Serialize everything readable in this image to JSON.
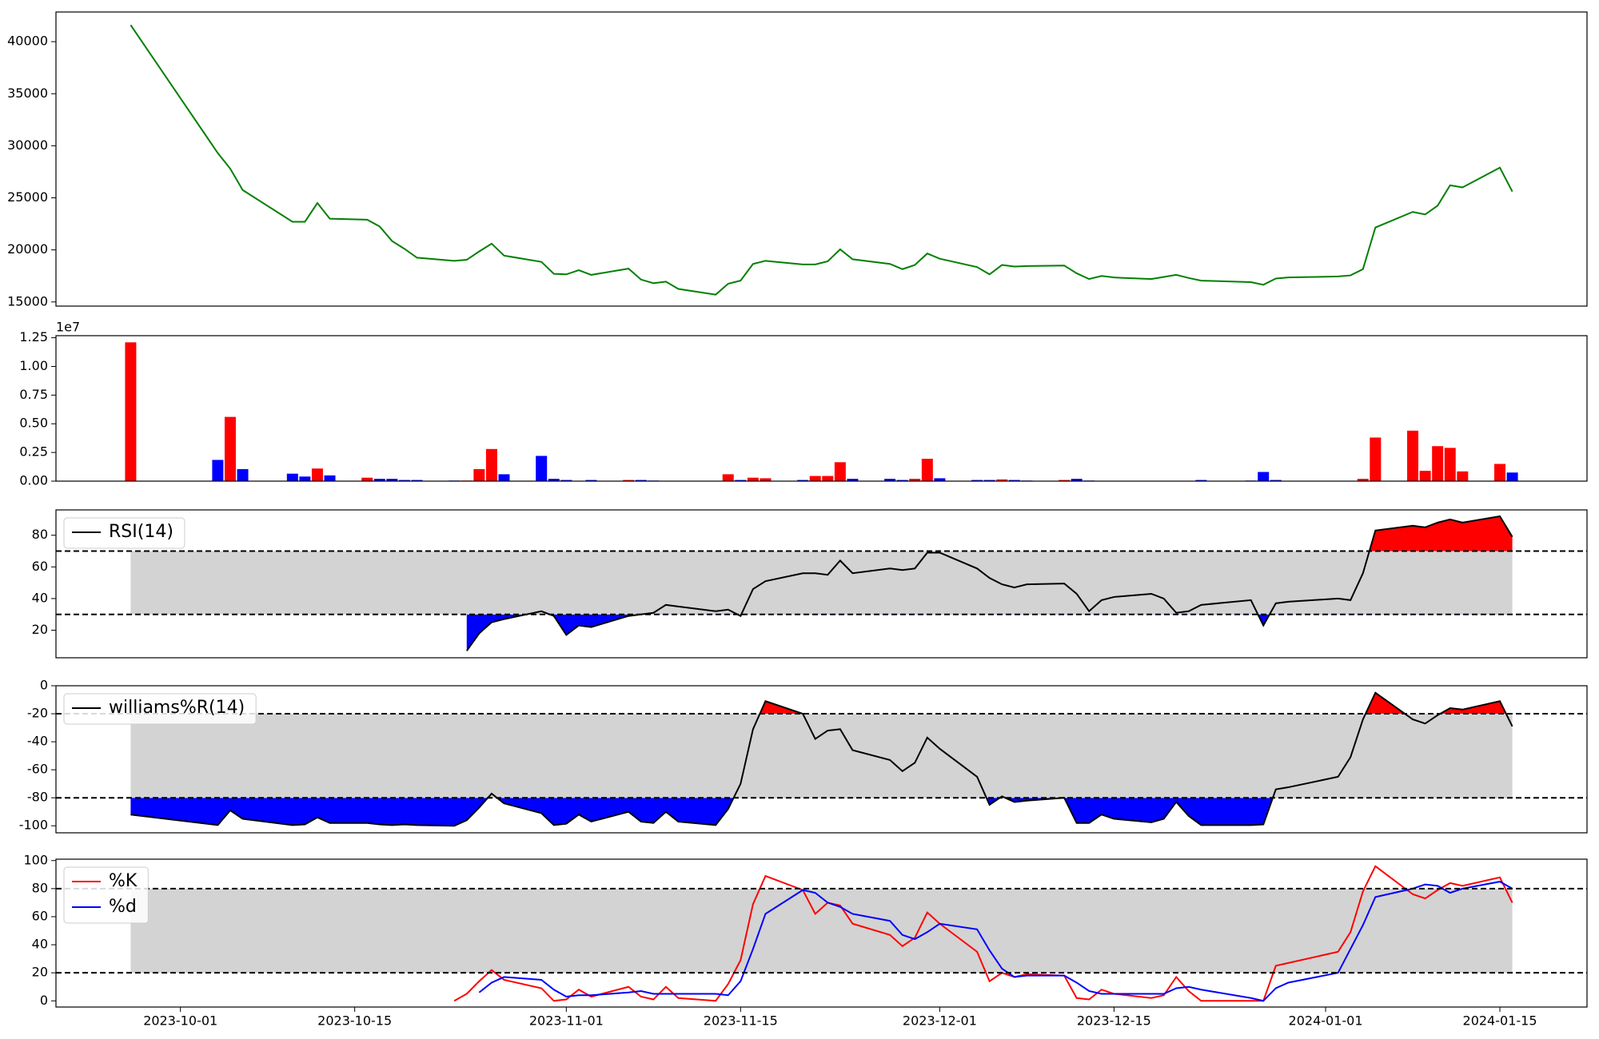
{
  "chart_data": [
    {
      "type": "line",
      "color": "#008000",
      "x": [
        "2023-09-27",
        "2023-10-04",
        "2023-10-05",
        "2023-10-06",
        "2023-10-10",
        "2023-10-11",
        "2023-10-12",
        "2023-10-13",
        "2023-10-16",
        "2023-10-17",
        "2023-10-18",
        "2023-10-19",
        "2023-10-20",
        "2023-10-23",
        "2023-10-24",
        "2023-10-25",
        "2023-10-26",
        "2023-10-27",
        "2023-10-30",
        "2023-10-31",
        "2023-11-01",
        "2023-11-02",
        "2023-11-03",
        "2023-11-06",
        "2023-11-07",
        "2023-11-08",
        "2023-11-09",
        "2023-11-10",
        "2023-11-13",
        "2023-11-14",
        "2023-11-15",
        "2023-11-16",
        "2023-11-17",
        "2023-11-20",
        "2023-11-21",
        "2023-11-22",
        "2023-11-23",
        "2023-11-24",
        "2023-11-27",
        "2023-11-28",
        "2023-11-29",
        "2023-11-30",
        "2023-12-01",
        "2023-12-04",
        "2023-12-05",
        "2023-12-06",
        "2023-12-07",
        "2023-12-08",
        "2023-12-11",
        "2023-12-12",
        "2023-12-13",
        "2023-12-14",
        "2023-12-15",
        "2023-12-18",
        "2023-12-19",
        "2023-12-20",
        "2023-12-21",
        "2023-12-22",
        "2023-12-26",
        "2023-12-27",
        "2023-12-28",
        "2023-12-29",
        "2024-01-02",
        "2024-01-03",
        "2024-01-04",
        "2024-01-05",
        "2024-01-08",
        "2024-01-09",
        "2024-01-10",
        "2024-01-11",
        "2024-01-12",
        "2024-01-15",
        "2024-01-16"
      ],
      "values": [
        41600,
        29300,
        27800,
        25750,
        22700,
        22700,
        24500,
        23000,
        22900,
        22250,
        20850,
        20100,
        19250,
        18950,
        19050,
        19850,
        20600,
        19450,
        18850,
        17700,
        17650,
        18050,
        17600,
        18200,
        17150,
        16800,
        16950,
        16250,
        15700,
        16750,
        17050,
        18650,
        18950,
        18600,
        18600,
        18900,
        20050,
        19100,
        18650,
        18150,
        18550,
        19650,
        19150,
        18350,
        17650,
        18550,
        18400,
        18450,
        18500,
        17750,
        17200,
        17500,
        17350,
        17200,
        17400,
        17600,
        17300,
        17050,
        16900,
        16650,
        17250,
        17350,
        17450,
        17550,
        18150,
        22150,
        23650,
        23400,
        24250,
        26200,
        26000,
        27900,
        25600
      ],
      "xlim": [
        "2023-09-21",
        "2024-01-22"
      ],
      "ylim": [
        14600,
        42850
      ],
      "yticks": [
        15000,
        20000,
        25000,
        30000,
        35000,
        40000
      ]
    },
    {
      "type": "bar",
      "offset_label": "1e7",
      "x": [
        "2023-09-27",
        "2023-10-04",
        "2023-10-05",
        "2023-10-06",
        "2023-10-10",
        "2023-10-11",
        "2023-10-12",
        "2023-10-13",
        "2023-10-16",
        "2023-10-17",
        "2023-10-18",
        "2023-10-19",
        "2023-10-20",
        "2023-10-23",
        "2023-10-24",
        "2023-10-25",
        "2023-10-26",
        "2023-10-27",
        "2023-10-30",
        "2023-10-31",
        "2023-11-01",
        "2023-11-02",
        "2023-11-03",
        "2023-11-06",
        "2023-11-07",
        "2023-11-08",
        "2023-11-09",
        "2023-11-10",
        "2023-11-13",
        "2023-11-14",
        "2023-11-15",
        "2023-11-16",
        "2023-11-17",
        "2023-11-20",
        "2023-11-21",
        "2023-11-22",
        "2023-11-23",
        "2023-11-24",
        "2023-11-27",
        "2023-11-28",
        "2023-11-29",
        "2023-11-30",
        "2023-12-01",
        "2023-12-04",
        "2023-12-05",
        "2023-12-06",
        "2023-12-07",
        "2023-12-08",
        "2023-12-11",
        "2023-12-12",
        "2023-12-13",
        "2023-12-14",
        "2023-12-15",
        "2023-12-18",
        "2023-12-19",
        "2023-12-20",
        "2023-12-21",
        "2023-12-22",
        "2023-12-26",
        "2023-12-27",
        "2023-12-28",
        "2023-12-29",
        "2024-01-02",
        "2024-01-03",
        "2024-01-04",
        "2024-01-05",
        "2024-01-08",
        "2024-01-09",
        "2024-01-10",
        "2024-01-11",
        "2024-01-12",
        "2024-01-15",
        "2024-01-16"
      ],
      "values": [
        12100000,
        1850000,
        5600000,
        1050000,
        650000,
        400000,
        1100000,
        500000,
        300000,
        200000,
        200000,
        100000,
        100000,
        50000,
        50000,
        1050000,
        2800000,
        600000,
        2200000,
        200000,
        100000,
        30000,
        100000,
        100000,
        100000,
        50000,
        30000,
        30000,
        30000,
        600000,
        100000,
        300000,
        250000,
        100000,
        450000,
        450000,
        1650000,
        200000,
        200000,
        100000,
        200000,
        1950000,
        250000,
        100000,
        100000,
        150000,
        100000,
        50000,
        100000,
        200000,
        50000,
        30000,
        30000,
        30000,
        30000,
        30000,
        30000,
        100000,
        50000,
        800000,
        100000,
        30000,
        30000,
        30000,
        200000,
        3800000,
        4400000,
        900000,
        3050000,
        2900000,
        850000,
        1500000,
        750000
      ],
      "colors": [
        "#ff0000",
        "#0000ff",
        "#ff0000",
        "#0000ff",
        "#0000ff",
        "#0000ff",
        "#ff0000",
        "#0000ff",
        "#ff0000",
        "#0000ff",
        "#0000ff",
        "#0000ff",
        "#0000ff",
        "#0000ff",
        "#ff0000",
        "#ff0000",
        "#ff0000",
        "#0000ff",
        "#0000ff",
        "#0000ff",
        "#0000ff",
        "#ff0000",
        "#0000ff",
        "#ff0000",
        "#0000ff",
        "#0000ff",
        "#ff0000",
        "#0000ff",
        "#0000ff",
        "#ff0000",
        "#0000ff",
        "#ff0000",
        "#ff0000",
        "#0000ff",
        "#ff0000",
        "#ff0000",
        "#ff0000",
        "#0000ff",
        "#0000ff",
        "#0000ff",
        "#ff0000",
        "#ff0000",
        "#0000ff",
        "#0000ff",
        "#0000ff",
        "#ff0000",
        "#0000ff",
        "#0000ff",
        "#ff0000",
        "#0000ff",
        "#0000ff",
        "#ff0000",
        "#0000ff",
        "#0000ff",
        "#ff0000",
        "#ff0000",
        "#ff0000",
        "#0000ff",
        "#0000ff",
        "#0000ff",
        "#0000ff",
        "#ff0000",
        "#ff0000",
        "#ff0000",
        "#ff0000",
        "#ff0000",
        "#ff0000",
        "#ff0000",
        "#ff0000",
        "#ff0000",
        "#ff0000",
        "#ff0000",
        "#0000ff"
      ],
      "xlim": [
        "2023-09-21",
        "2024-01-22"
      ],
      "ylim": [
        0,
        12680000
      ],
      "yticks": [
        {
          "value": 0,
          "label": "0.00"
        },
        {
          "value": 2500000,
          "label": "0.25"
        },
        {
          "value": 5000000,
          "label": "0.50"
        },
        {
          "value": 7500000,
          "label": "0.75"
        },
        {
          "value": 10000000,
          "label": "1.00"
        },
        {
          "value": 12500000,
          "label": "1.25"
        }
      ]
    },
    {
      "type": "line",
      "levels": [
        30,
        70
      ],
      "band_color": "#d3d3d3",
      "fill_above": "#ff0000",
      "fill_below": "#0000ff",
      "legend": "upper left",
      "x": [
        "2023-09-27",
        "2023-10-04",
        "2023-10-05",
        "2023-10-06",
        "2023-10-10",
        "2023-10-11",
        "2023-10-12",
        "2023-10-13",
        "2023-10-16",
        "2023-10-17",
        "2023-10-18",
        "2023-10-19",
        "2023-10-20",
        "2023-10-23",
        "2023-10-24",
        "2023-10-25",
        "2023-10-26",
        "2023-10-27",
        "2023-10-30",
        "2023-10-31",
        "2023-11-01",
        "2023-11-02",
        "2023-11-03",
        "2023-11-06",
        "2023-11-07",
        "2023-11-08",
        "2023-11-09",
        "2023-11-10",
        "2023-11-13",
        "2023-11-14",
        "2023-11-15",
        "2023-11-16",
        "2023-11-17",
        "2023-11-20",
        "2023-11-21",
        "2023-11-22",
        "2023-11-23",
        "2023-11-24",
        "2023-11-27",
        "2023-11-28",
        "2023-11-29",
        "2023-11-30",
        "2023-12-01",
        "2023-12-04",
        "2023-12-05",
        "2023-12-06",
        "2023-12-07",
        "2023-12-08",
        "2023-12-11",
        "2023-12-12",
        "2023-12-13",
        "2023-12-14",
        "2023-12-15",
        "2023-12-18",
        "2023-12-19",
        "2023-12-20",
        "2023-12-21",
        "2023-12-22",
        "2023-12-26",
        "2023-12-27",
        "2023-12-28",
        "2023-12-29",
        "2024-01-02",
        "2024-01-03",
        "2024-01-04",
        "2024-01-05",
        "2024-01-08",
        "2024-01-09",
        "2024-01-10",
        "2024-01-11",
        "2024-01-12",
        "2024-01-15",
        "2024-01-16"
      ],
      "series": [
        {
          "name": "RSI(14)",
          "color": "#000000",
          "values": [
            null,
            null,
            null,
            null,
            null,
            null,
            null,
            null,
            null,
            null,
            null,
            null,
            null,
            null,
            7,
            18,
            25,
            27,
            32,
            29,
            17,
            23,
            22,
            29,
            30,
            31,
            36,
            35,
            32,
            33,
            29,
            46,
            51,
            56,
            56,
            55,
            64,
            56,
            59,
            58,
            59,
            69,
            69,
            59,
            53,
            49,
            47,
            49,
            49.5,
            43,
            32,
            39,
            41,
            43,
            40,
            31,
            32,
            36,
            39,
            23,
            37,
            38,
            40,
            39,
            56,
            83,
            86,
            85,
            88,
            90,
            88,
            92,
            79
          ]
        }
      ],
      "xlim": [
        "2023-09-21",
        "2024-01-22"
      ],
      "ylim": [
        2.6,
        96
      ],
      "yticks": [
        20,
        40,
        60,
        80
      ]
    },
    {
      "type": "line",
      "levels": [
        -80,
        -20
      ],
      "band_color": "#d3d3d3",
      "fill_above": "#ff0000",
      "fill_below": "#0000ff",
      "legend": "upper left",
      "x": [
        "2023-09-27",
        "2023-10-04",
        "2023-10-05",
        "2023-10-06",
        "2023-10-10",
        "2023-10-11",
        "2023-10-12",
        "2023-10-13",
        "2023-10-16",
        "2023-10-17",
        "2023-10-18",
        "2023-10-19",
        "2023-10-20",
        "2023-10-23",
        "2023-10-24",
        "2023-10-25",
        "2023-10-26",
        "2023-10-27",
        "2023-10-30",
        "2023-10-31",
        "2023-11-01",
        "2023-11-02",
        "2023-11-03",
        "2023-11-06",
        "2023-11-07",
        "2023-11-08",
        "2023-11-09",
        "2023-11-10",
        "2023-11-13",
        "2023-11-14",
        "2023-11-15",
        "2023-11-16",
        "2023-11-17",
        "2023-11-20",
        "2023-11-21",
        "2023-11-22",
        "2023-11-23",
        "2023-11-24",
        "2023-11-27",
        "2023-11-28",
        "2023-11-29",
        "2023-11-30",
        "2023-12-01",
        "2023-12-04",
        "2023-12-05",
        "2023-12-06",
        "2023-12-07",
        "2023-12-08",
        "2023-12-11",
        "2023-12-12",
        "2023-12-13",
        "2023-12-14",
        "2023-12-15",
        "2023-12-18",
        "2023-12-19",
        "2023-12-20",
        "2023-12-21",
        "2023-12-22",
        "2023-12-26",
        "2023-12-27",
        "2023-12-28",
        "2023-12-29",
        "2024-01-02",
        "2024-01-03",
        "2024-01-04",
        "2024-01-05",
        "2024-01-08",
        "2024-01-09",
        "2024-01-10",
        "2024-01-11",
        "2024-01-12",
        "2024-01-15",
        "2024-01-16"
      ],
      "series": [
        {
          "name": "williams%R(14)",
          "color": "#000000",
          "values": [
            -92,
            -99.5,
            -89,
            -95,
            -99.5,
            -99,
            -94,
            -98,
            -98,
            -99,
            -99.5,
            -99,
            -99.5,
            -100,
            -96,
            -87,
            -77,
            -84,
            -91,
            -99.5,
            -98.5,
            -92,
            -97,
            -90,
            -97,
            -98,
            -90,
            -97,
            -99.5,
            -88,
            -70,
            -31,
            -11,
            -20,
            -38,
            -32,
            -31,
            -46,
            -53,
            -61,
            -55,
            -37,
            -45,
            -65,
            -85,
            -79,
            -83,
            -82,
            -80,
            -98,
            -98,
            -92,
            -95,
            -97.5,
            -95,
            -83,
            -93,
            -99.5,
            -99.5,
            -99,
            -74,
            -72.5,
            -65,
            -51,
            -24,
            -5,
            -24,
            -27,
            -21,
            -16,
            -17,
            -11,
            -29
          ]
        }
      ],
      "xlim": [
        "2023-09-21",
        "2024-01-22"
      ],
      "ylim": [
        -105,
        0
      ],
      "yticks": [
        -100,
        -80,
        -60,
        -40,
        -20,
        0
      ]
    },
    {
      "type": "line",
      "levels": [
        20,
        80
      ],
      "band_color": "#d3d3d3",
      "legend": "upper left",
      "x": [
        "2023-09-27",
        "2023-10-04",
        "2023-10-05",
        "2023-10-06",
        "2023-10-10",
        "2023-10-11",
        "2023-10-12",
        "2023-10-13",
        "2023-10-16",
        "2023-10-17",
        "2023-10-18",
        "2023-10-19",
        "2023-10-20",
        "2023-10-23",
        "2023-10-24",
        "2023-10-25",
        "2023-10-26",
        "2023-10-27",
        "2023-10-30",
        "2023-10-31",
        "2023-11-01",
        "2023-11-02",
        "2023-11-03",
        "2023-11-06",
        "2023-11-07",
        "2023-11-08",
        "2023-11-09",
        "2023-11-10",
        "2023-11-13",
        "2023-11-14",
        "2023-11-15",
        "2023-11-16",
        "2023-11-17",
        "2023-11-20",
        "2023-11-21",
        "2023-11-22",
        "2023-11-23",
        "2023-11-24",
        "2023-11-27",
        "2023-11-28",
        "2023-11-29",
        "2023-11-30",
        "2023-12-01",
        "2023-12-04",
        "2023-12-05",
        "2023-12-06",
        "2023-12-07",
        "2023-12-08",
        "2023-12-11",
        "2023-12-12",
        "2023-12-13",
        "2023-12-14",
        "2023-12-15",
        "2023-12-18",
        "2023-12-19",
        "2023-12-20",
        "2023-12-21",
        "2023-12-22",
        "2023-12-26",
        "2023-12-27",
        "2023-12-28",
        "2023-12-29",
        "2024-01-02",
        "2024-01-03",
        "2024-01-04",
        "2024-01-05",
        "2024-01-08",
        "2024-01-09",
        "2024-01-10",
        "2024-01-11",
        "2024-01-12",
        "2024-01-15",
        "2024-01-16"
      ],
      "series": [
        {
          "name": "%K",
          "color": "#ff0000",
          "values": [
            null,
            null,
            null,
            null,
            null,
            null,
            null,
            null,
            null,
            null,
            null,
            null,
            null,
            0,
            5,
            14,
            22,
            15,
            9,
            0,
            1,
            8,
            3,
            10,
            3,
            1,
            10,
            2,
            0,
            12,
            29,
            69,
            89,
            79,
            62,
            70,
            68,
            55,
            47,
            39,
            45,
            63,
            55,
            35,
            14,
            20,
            17,
            19,
            18,
            2,
            1,
            8,
            5,
            2,
            4,
            17,
            7,
            0,
            0,
            0,
            25,
            27,
            35,
            49,
            78,
            96,
            76,
            73,
            79,
            84,
            82,
            88,
            70
          ]
        },
        {
          "name": "%d",
          "color": "#0000ff",
          "values": [
            null,
            null,
            null,
            null,
            null,
            null,
            null,
            null,
            null,
            null,
            null,
            null,
            null,
            null,
            null,
            6,
            13,
            17,
            15,
            8,
            3,
            4,
            4,
            6,
            7,
            5,
            5,
            5,
            5,
            4,
            14,
            37,
            62,
            79,
            77,
            70,
            67,
            62,
            57,
            47,
            44,
            49,
            55,
            51,
            36,
            23,
            17,
            18,
            18,
            13,
            7,
            5,
            5,
            5,
            5,
            9,
            10,
            8,
            2,
            0,
            9,
            13,
            20,
            37,
            54,
            74,
            80,
            83,
            82,
            77,
            80,
            85,
            80
          ]
        }
      ],
      "xlim": [
        "2023-09-21",
        "2024-01-22"
      ],
      "ylim": [
        -4.4,
        101
      ],
      "yticks": [
        0,
        20,
        40,
        60,
        80,
        100
      ],
      "xticks": [
        "2023-10-01",
        "2023-10-15",
        "2023-11-01",
        "2023-11-15",
        "2023-12-01",
        "2023-12-15",
        "2024-01-01",
        "2024-01-15"
      ]
    }
  ]
}
